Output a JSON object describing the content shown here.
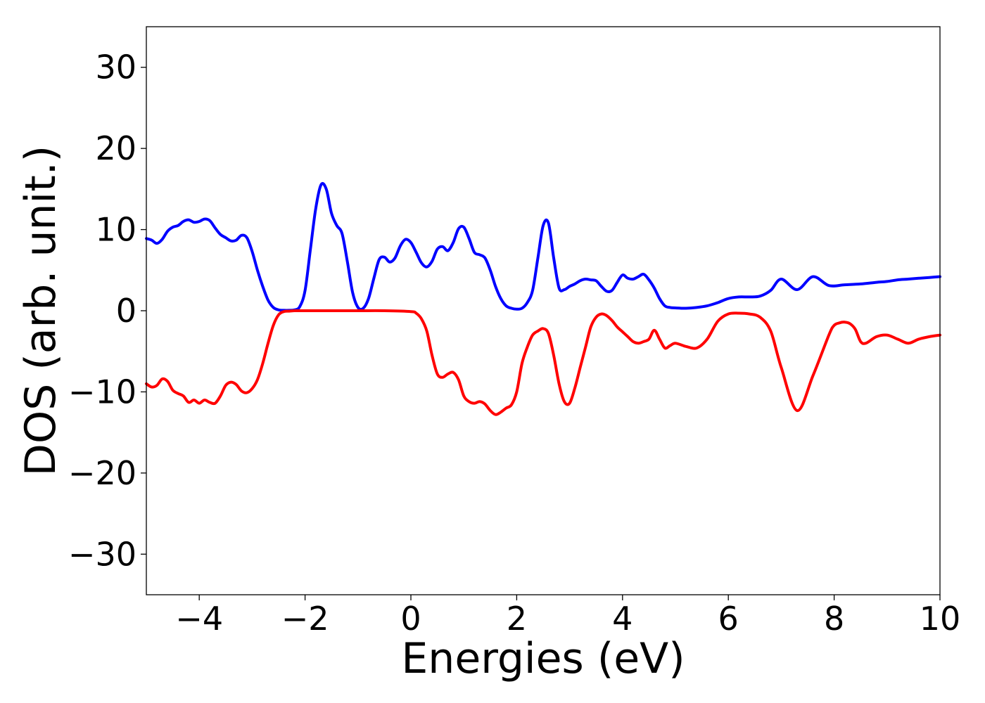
{
  "chart_data": {
    "type": "line",
    "title": "",
    "xlabel": "Energies (eV)",
    "ylabel": "DOS (arb. unit.)",
    "xlim": [
      -5,
      10
    ],
    "ylim": [
      -35,
      35
    ],
    "grid": false,
    "legend": "none",
    "x_ticks": [
      -4,
      -2,
      0,
      2,
      4,
      6,
      8,
      10
    ],
    "x_tick_labels": [
      "−4",
      "−2",
      "0",
      "2",
      "4",
      "6",
      "8",
      "10"
    ],
    "y_ticks": [
      -30,
      -20,
      -10,
      0,
      10,
      20,
      30
    ],
    "y_tick_labels": [
      "−30",
      "−20",
      "−10",
      "0",
      "10",
      "20",
      "30"
    ],
    "series": [
      {
        "color": "#0000ff",
        "x": [
          -5.0,
          -4.9,
          -4.8,
          -4.7,
          -4.6,
          -4.5,
          -4.4,
          -4.3,
          -4.2,
          -4.1,
          -4.0,
          -3.9,
          -3.8,
          -3.7,
          -3.6,
          -3.5,
          -3.4,
          -3.3,
          -3.2,
          -3.1,
          -3.0,
          -2.9,
          -2.8,
          -2.7,
          -2.6,
          -2.5,
          -2.4,
          -2.3,
          -2.2,
          -2.1,
          -2.0,
          -1.9,
          -1.8,
          -1.7,
          -1.6,
          -1.5,
          -1.4,
          -1.3,
          -1.2,
          -1.1,
          -1.0,
          -0.9,
          -0.8,
          -0.7,
          -0.6,
          -0.5,
          -0.4,
          -0.3,
          -0.2,
          -0.1,
          0.0,
          0.1,
          0.2,
          0.3,
          0.4,
          0.5,
          0.6,
          0.7,
          0.8,
          0.9,
          1.0,
          1.1,
          1.2,
          1.3,
          1.4,
          1.5,
          1.6,
          1.7,
          1.8,
          1.9,
          2.0,
          2.1,
          2.2,
          2.3,
          2.4,
          2.5,
          2.6,
          2.7,
          2.8,
          2.9,
          3.0,
          3.1,
          3.2,
          3.3,
          3.4,
          3.5,
          3.6,
          3.7,
          3.8,
          3.9,
          4.0,
          4.1,
          4.2,
          4.3,
          4.4,
          4.5,
          4.6,
          4.7,
          4.8,
          4.9,
          5.0,
          5.2,
          5.4,
          5.6,
          5.8,
          6.0,
          6.2,
          6.4,
          6.6,
          6.8,
          7.0,
          7.3,
          7.6,
          7.9,
          8.2,
          8.5,
          8.8,
          9.0,
          9.2,
          9.4,
          9.6,
          9.8,
          10.0
        ],
        "y": [
          8.9,
          8.7,
          8.3,
          8.8,
          9.8,
          10.3,
          10.5,
          11.0,
          11.2,
          10.9,
          11.0,
          11.3,
          11.1,
          10.2,
          9.4,
          9.0,
          8.6,
          8.7,
          9.3,
          9.0,
          7.3,
          5.0,
          3.0,
          1.3,
          0.4,
          0.1,
          0.05,
          0.05,
          0.1,
          0.5,
          2.5,
          7.5,
          12.5,
          15.5,
          15.0,
          12.0,
          10.5,
          9.5,
          6.0,
          2.2,
          0.4,
          0.3,
          1.5,
          4.0,
          6.3,
          6.6,
          6.0,
          6.5,
          8.0,
          8.8,
          8.4,
          7.2,
          5.9,
          5.4,
          6.1,
          7.6,
          7.9,
          7.4,
          8.4,
          10.1,
          10.3,
          8.9,
          7.2,
          6.9,
          6.5,
          5.0,
          3.0,
          1.5,
          0.6,
          0.3,
          0.2,
          0.3,
          1.0,
          2.5,
          6.5,
          10.5,
          10.8,
          6.5,
          2.8,
          2.6,
          3.0,
          3.3,
          3.7,
          3.9,
          3.8,
          3.7,
          3.0,
          2.4,
          2.5,
          3.5,
          4.4,
          4.0,
          3.9,
          4.2,
          4.5,
          3.8,
          2.8,
          1.5,
          0.6,
          0.4,
          0.35,
          0.3,
          0.4,
          0.6,
          1.0,
          1.5,
          1.7,
          1.7,
          1.8,
          2.5,
          3.9,
          2.6,
          4.2,
          3.1,
          3.2,
          3.3,
          3.5,
          3.6,
          3.8,
          3.9,
          4.0,
          4.1,
          4.2
        ]
      },
      {
        "color": "#ff0000",
        "x": [
          -5.0,
          -4.9,
          -4.8,
          -4.7,
          -4.6,
          -4.5,
          -4.4,
          -4.3,
          -4.2,
          -4.1,
          -4.0,
          -3.9,
          -3.8,
          -3.7,
          -3.6,
          -3.5,
          -3.4,
          -3.3,
          -3.2,
          -3.1,
          -3.0,
          -2.9,
          -2.8,
          -2.7,
          -2.6,
          -2.5,
          -2.4,
          -2.3,
          -2.2,
          -2.1,
          -2.0,
          -1.5,
          -1.0,
          -0.5,
          0.0,
          0.1,
          0.2,
          0.3,
          0.4,
          0.5,
          0.6,
          0.7,
          0.8,
          0.9,
          1.0,
          1.1,
          1.2,
          1.3,
          1.4,
          1.5,
          1.6,
          1.7,
          1.8,
          1.9,
          2.0,
          2.1,
          2.2,
          2.3,
          2.4,
          2.5,
          2.6,
          2.7,
          2.8,
          2.9,
          3.0,
          3.1,
          3.2,
          3.3,
          3.4,
          3.5,
          3.6,
          3.7,
          3.8,
          3.9,
          4.0,
          4.1,
          4.2,
          4.3,
          4.4,
          4.5,
          4.6,
          4.7,
          4.8,
          4.9,
          5.0,
          5.2,
          5.4,
          5.6,
          5.8,
          6.0,
          6.2,
          6.4,
          6.6,
          6.8,
          7.0,
          7.3,
          7.6,
          7.9,
          8.0,
          8.1,
          8.2,
          8.3,
          8.4,
          8.5,
          8.6,
          8.8,
          9.0,
          9.2,
          9.4,
          9.6,
          9.8,
          10.0
        ],
        "y": [
          -9.0,
          -9.4,
          -9.2,
          -8.4,
          -8.7,
          -9.8,
          -10.2,
          -10.5,
          -11.3,
          -11.0,
          -11.4,
          -11.0,
          -11.3,
          -11.4,
          -10.5,
          -9.2,
          -8.8,
          -9.1,
          -9.9,
          -10.1,
          -9.6,
          -8.5,
          -6.5,
          -4.0,
          -1.8,
          -0.5,
          -0.1,
          -0.05,
          0.0,
          0.0,
          0.0,
          0.0,
          0.0,
          0.0,
          -0.1,
          -0.3,
          -1.0,
          -2.5,
          -5.5,
          -7.8,
          -8.2,
          -7.8,
          -7.6,
          -8.5,
          -10.5,
          -11.2,
          -11.4,
          -11.2,
          -11.5,
          -12.3,
          -12.8,
          -12.5,
          -12.0,
          -11.6,
          -10.0,
          -6.5,
          -4.5,
          -3.0,
          -2.5,
          -2.2,
          -2.8,
          -5.5,
          -9.0,
          -11.2,
          -11.4,
          -9.5,
          -7.0,
          -4.5,
          -2.0,
          -0.8,
          -0.4,
          -0.6,
          -1.2,
          -2.0,
          -2.6,
          -3.2,
          -3.8,
          -4.0,
          -3.8,
          -3.5,
          -2.4,
          -3.5,
          -4.6,
          -4.3,
          -4.0,
          -4.4,
          -4.6,
          -3.5,
          -1.3,
          -0.4,
          -0.3,
          -0.4,
          -0.8,
          -2.5,
          -7.0,
          -12.3,
          -8.0,
          -3.0,
          -1.8,
          -1.5,
          -1.4,
          -1.6,
          -2.3,
          -3.8,
          -4.0,
          -3.2,
          -3.0,
          -3.5,
          -4.0,
          -3.5,
          -3.2,
          -3.0
        ]
      }
    ]
  }
}
